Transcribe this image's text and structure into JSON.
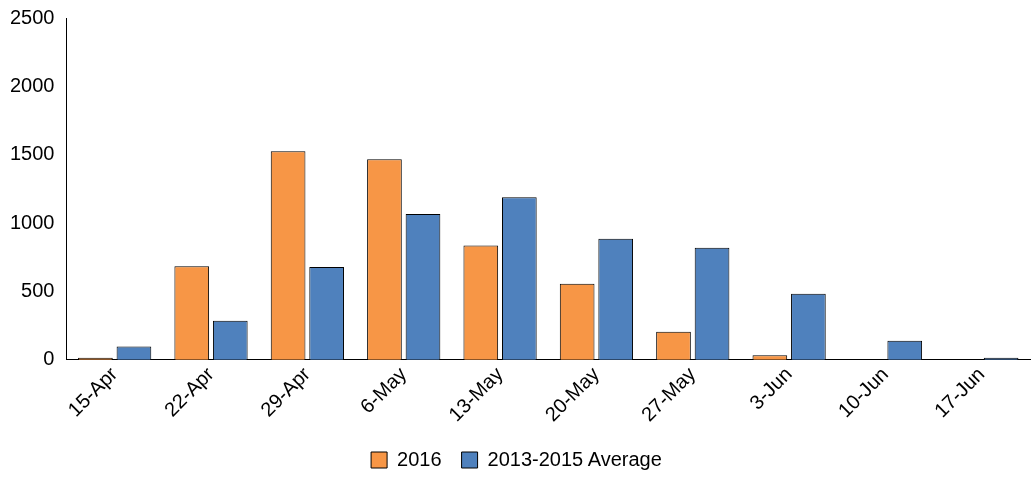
{
  "chart_data": {
    "type": "bar",
    "categories": [
      "15-Apr",
      "22-Apr",
      "29-Apr",
      "6-May",
      "13-May",
      "20-May",
      "27-May",
      "3-Jun",
      "10-Jun",
      "17-Jun"
    ],
    "series": [
      {
        "name": "2016",
        "color": "#f79646",
        "values": [
          15,
          685,
          1525,
          1467,
          836,
          557,
          205,
          33,
          0,
          0
        ]
      },
      {
        "name": "2013-2015 Average",
        "color": "#4f81bd",
        "values": [
          98,
          287,
          680,
          1066,
          1189,
          885,
          820,
          484,
          139,
          16
        ]
      }
    ],
    "ylim": [
      0,
      2500
    ],
    "yticks": [
      0,
      500,
      1000,
      1500,
      2000,
      2500
    ],
    "grid": false,
    "legend": "bottom"
  }
}
